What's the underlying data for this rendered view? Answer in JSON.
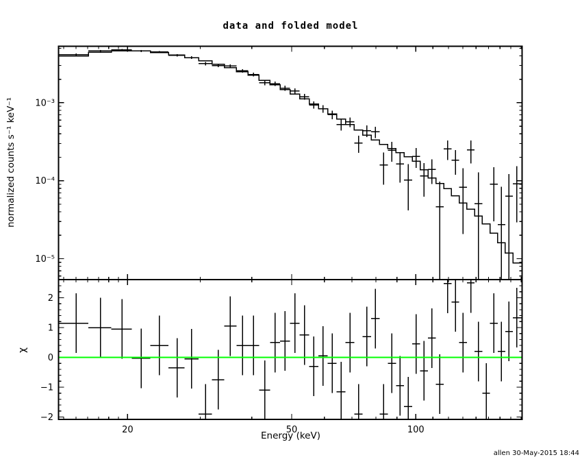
{
  "title": "data and folded model",
  "credit": "allen 30-May-2015 18:44",
  "colors": {
    "foreground": "#000000",
    "background": "#ffffff",
    "model": "#000000",
    "data": "#000000",
    "zero_line": "#00ff00"
  },
  "chart_data": [
    {
      "type": "line",
      "panel": "main",
      "title": "data and folded model",
      "xlabel": "Energy (keV)",
      "ylabel": "normalized counts s⁻¹ keV⁻¹",
      "xscale": "log",
      "yscale": "log",
      "xlim": [
        13.6,
        181
      ],
      "ylim": [
        5.4e-06,
        0.0053
      ],
      "grid": false,
      "legend": "none",
      "x_major_ticks": [
        20,
        50,
        100
      ],
      "x_major_labels": [
        "20",
        "50",
        "100"
      ],
      "y_major_ticks": [
        0.001,
        0.0001,
        1e-05
      ],
      "y_major_labels": [
        "10⁻³",
        "10⁻⁴",
        "10⁻⁵"
      ],
      "model_curve": [
        [
          13.6,
          0.0036
        ],
        [
          16.3,
          0.00435
        ],
        [
          18,
          0.00455
        ],
        [
          20,
          0.00465
        ],
        [
          22,
          0.0046
        ],
        [
          25,
          0.0043
        ],
        [
          28,
          0.0039
        ],
        [
          32,
          0.0033
        ],
        [
          36,
          0.00275
        ],
        [
          40,
          0.0023
        ],
        [
          45,
          0.00175
        ],
        [
          50,
          0.00135
        ],
        [
          55,
          0.00105
        ],
        [
          60,
          0.00082
        ],
        [
          67,
          0.00059
        ],
        [
          73,
          0.00044
        ],
        [
          80,
          0.00033
        ],
        [
          90,
          0.00024
        ],
        [
          100,
          0.00018
        ],
        [
          110,
          0.000105
        ],
        [
          120,
          7.8e-05
        ],
        [
          130,
          5.2e-05
        ],
        [
          140,
          3.8e-05
        ],
        [
          150,
          2.6e-05
        ],
        [
          160,
          1.7e-05
        ],
        [
          170,
          1.1e-05
        ],
        [
          181,
          7.2e-06
        ]
      ],
      "points": {
        "comment_data_rule": "data_y = model(e)*(1+chi*rel_err); y_err = model(e)*rel_err",
        "e": [
          15.0,
          17.2,
          19.4,
          21.6,
          23.9,
          26.4,
          28.6,
          30.9,
          33.2,
          35.5,
          38.0,
          40.4,
          43.0,
          45.6,
          48.2,
          50.9,
          53.7,
          56.6,
          59.6,
          62.7,
          65.9,
          69.2,
          72.6,
          76.1,
          79.8,
          83.6,
          87.5,
          91.6,
          95.8,
          100.2,
          104.7,
          109.4,
          114.3,
          119.4,
          124.7,
          130.2,
          135.9,
          141.9,
          148.1,
          154.6,
          161.3,
          168.3,
          175.6
        ],
        "chi": [
          1.15,
          1.0,
          0.95,
          -0.03,
          0.4,
          -0.35,
          -0.05,
          -1.9,
          -0.75,
          1.05,
          0.4,
          0.4,
          -1.1,
          0.5,
          0.55,
          1.15,
          0.75,
          -0.3,
          0.05,
          -0.2,
          -1.15,
          0.5,
          -1.9,
          0.7,
          1.3,
          -1.9,
          -0.2,
          -0.95,
          -1.65,
          0.45,
          -0.45,
          0.65,
          -0.9,
          2.48,
          1.86,
          0.5,
          2.5,
          0.2,
          -1.2,
          1.15,
          0.2,
          0.87,
          1.33
        ],
        "rel_err": [
          0.035,
          0.033,
          0.032,
          0.033,
          0.035,
          0.037,
          0.04,
          0.043,
          0.047,
          0.05,
          0.055,
          0.06,
          0.065,
          0.07,
          0.077,
          0.085,
          0.09,
          0.1,
          0.11,
          0.12,
          0.135,
          0.15,
          0.17,
          0.19,
          0.21,
          0.24,
          0.27,
          0.3,
          0.3,
          0.33,
          0.38,
          0.45,
          0.55,
          0.9,
          1.0,
          1.2,
          1.9,
          2.2,
          2.5,
          2.8,
          3.5,
          5.0,
          7.0
        ]
      }
    },
    {
      "type": "scatter",
      "panel": "residuals",
      "ylabel": "χ",
      "xscale": "log",
      "xlim": [
        13.6,
        181
      ],
      "ylim": [
        -2.08,
        2.61
      ],
      "zero_line_y": 0,
      "y_major_ticks": [
        2,
        1,
        0,
        -1,
        -2
      ],
      "y_major_labels": [
        "2",
        "1",
        "0",
        "−1",
        "−2"
      ],
      "points": {
        "e": [
          15.0,
          17.2,
          19.4,
          21.6,
          23.9,
          26.4,
          28.6,
          30.9,
          33.2,
          35.5,
          38.0,
          40.4,
          43.0,
          45.6,
          48.2,
          50.9,
          53.7,
          56.6,
          59.6,
          62.7,
          65.9,
          69.2,
          72.6,
          76.1,
          79.8,
          83.6,
          87.5,
          91.6,
          95.8,
          100.2,
          104.7,
          109.4,
          114.3,
          119.4,
          124.7,
          130.2,
          135.9,
          141.9,
          148.1,
          154.6,
          161.3,
          168.3,
          175.6
        ],
        "chi": [
          1.15,
          1.0,
          0.95,
          -0.03,
          0.4,
          -0.35,
          -0.05,
          -1.9,
          -0.75,
          1.05,
          0.4,
          0.4,
          -1.1,
          0.5,
          0.55,
          1.15,
          0.75,
          -0.3,
          0.05,
          -0.2,
          -1.15,
          0.5,
          -1.9,
          0.7,
          1.3,
          -1.9,
          -0.2,
          -0.95,
          -1.65,
          0.45,
          -0.45,
          0.65,
          -0.9,
          2.48,
          1.86,
          0.5,
          2.5,
          0.2,
          -1.2,
          1.15,
          0.2,
          0.87,
          1.33
        ],
        "err": 1.0
      }
    }
  ]
}
